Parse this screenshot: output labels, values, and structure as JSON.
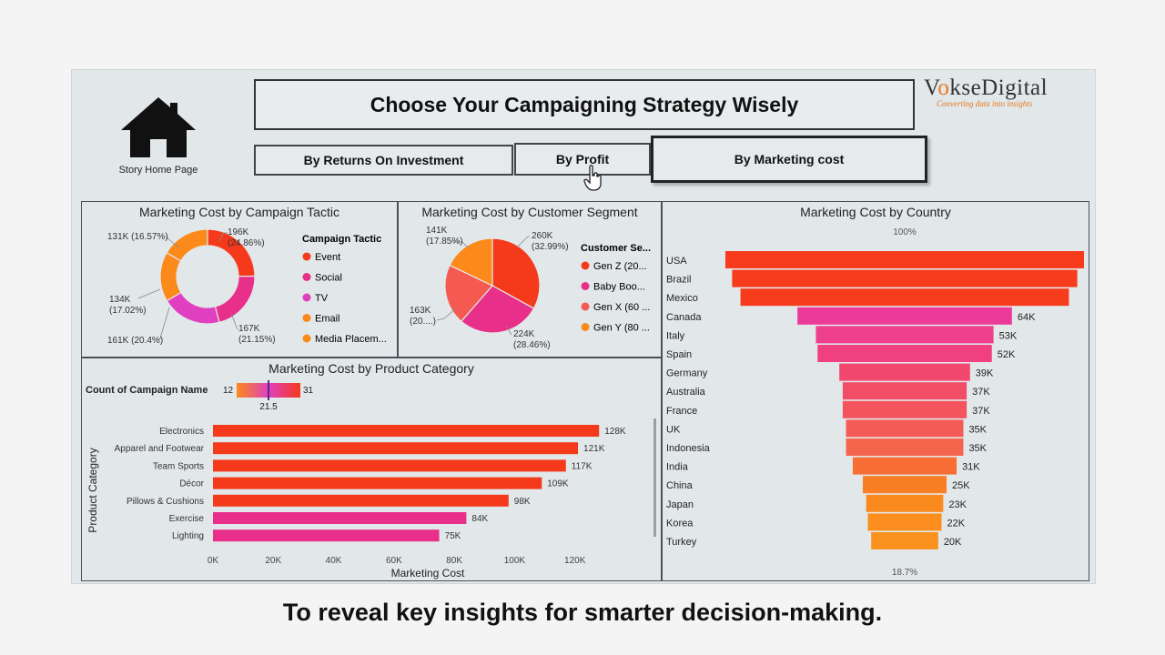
{
  "title": "Choose Your Campaigning Strategy Wisely",
  "home": {
    "label": "Story Home Page",
    "icon": "house-icon"
  },
  "logo": {
    "name": "VokseDigital",
    "tagline": "Converting data into insights"
  },
  "tabs": [
    {
      "label": "By Returns On Investment"
    },
    {
      "label": "By Profit"
    },
    {
      "label": "By Marketing cost"
    }
  ],
  "active_tab": "By Marketing cost",
  "caption": "To reveal key insights for smarter decision-making.",
  "colors": {
    "accent_red": "#f43a1a",
    "pink": "#e8308a",
    "magenta": "#e040c0",
    "orange": "#fb8a1a"
  },
  "chart_data": [
    {
      "type": "pie",
      "variant": "donut",
      "title": "Marketing Cost by Campaign Tactic",
      "legend_title": "Campaign Tactic",
      "legend_position": "right",
      "slices": [
        {
          "name": "Event",
          "value": 196,
          "label": "196K",
          "pct": "(24.86%)",
          "color": "#f43a1a"
        },
        {
          "name": "Social",
          "value": 167,
          "label": "167K",
          "pct": "(21.15%)",
          "color": "#e8308a"
        },
        {
          "name": "TV",
          "value": 161,
          "label": "161K (20.4%)",
          "pct": "",
          "color": "#e040c0"
        },
        {
          "name": "Email",
          "value": 134,
          "label": "134K",
          "pct": "(17.02%)",
          "color": "#fb8a1a"
        },
        {
          "name": "Media Placem...",
          "value": 131,
          "label": "131K (16.57%)",
          "pct": "",
          "color": "#fb8a1a"
        }
      ]
    },
    {
      "type": "pie",
      "title": "Marketing Cost by Customer Segment",
      "legend_title": "Customer Se...",
      "legend_position": "right",
      "slices": [
        {
          "name": "Gen Z (20...",
          "value": 260,
          "label": "260K",
          "pct": "(32.99%)",
          "color": "#f43a1a"
        },
        {
          "name": "Baby Boo...",
          "value": 224,
          "label": "224K",
          "pct": "(28.46%)",
          "color": "#e8308a"
        },
        {
          "name": "Gen X (60 ...",
          "value": 163,
          "label": "163K",
          "pct": "(20....)",
          "color": "#f55a50"
        },
        {
          "name": "Gen Y (80 ...",
          "value": 141,
          "label": "141K",
          "pct": "(17.85%)",
          "color": "#fb8a1a"
        }
      ]
    },
    {
      "type": "bar",
      "orientation": "horizontal",
      "title": "Marketing Cost by Product Category",
      "xlabel": "Marketing Cost",
      "ylabel": "Product Category",
      "color_scale": {
        "label": "Count of Campaign Name",
        "min": "12",
        "mid": "21.5",
        "max": "31"
      },
      "xticks": [
        "0K",
        "20K",
        "40K",
        "60K",
        "80K",
        "100K",
        "120K"
      ],
      "xlim": [
        0,
        140
      ],
      "categories": [
        "Electronics",
        "Apparel and Footwear",
        "Team Sports",
        "Décor",
        "Pillows & Cushions",
        "Exercise",
        "Lighting"
      ],
      "values": [
        128,
        121,
        117,
        109,
        98,
        84,
        75
      ],
      "value_labels": [
        "128K",
        "121K",
        "117K",
        "109K",
        "98K",
        "84K",
        "75K"
      ],
      "colors": [
        "#f43a1a",
        "#f43a1a",
        "#f43a1a",
        "#f43a1a",
        "#f43a1a",
        "#e8308a",
        "#e8308a"
      ]
    },
    {
      "type": "bar",
      "variant": "funnel",
      "title": "Marketing Cost by Country",
      "top_label": "100%",
      "bottom_label": "18.7%",
      "categories": [
        "USA",
        "Brazil",
        "Mexico",
        "Canada",
        "Italy",
        "Spain",
        "Germany",
        "Australia",
        "France",
        "UK",
        "Indonesia",
        "India",
        "China",
        "Japan",
        "Korea",
        "Turkey"
      ],
      "values": [
        107,
        103,
        98,
        64,
        53,
        52,
        39,
        37,
        37,
        35,
        35,
        31,
        25,
        23,
        22,
        20
      ],
      "value_labels": [
        "",
        "",
        "",
        "64K",
        "53K",
        "52K",
        "39K",
        "37K",
        "37K",
        "35K",
        "35K",
        "31K",
        "25K",
        "23K",
        "22K",
        "20K"
      ],
      "colors": [
        "#f63c1c",
        "#f63c1c",
        "#f63c1c",
        "#ec3a98",
        "#ee3f8c",
        "#f04080",
        "#f2476e",
        "#f24d66",
        "#f3545e",
        "#f45a56",
        "#f5644c",
        "#f86e34",
        "#fa7f24",
        "#fb8a1e",
        "#fb8e1e",
        "#fb921e"
      ]
    }
  ]
}
